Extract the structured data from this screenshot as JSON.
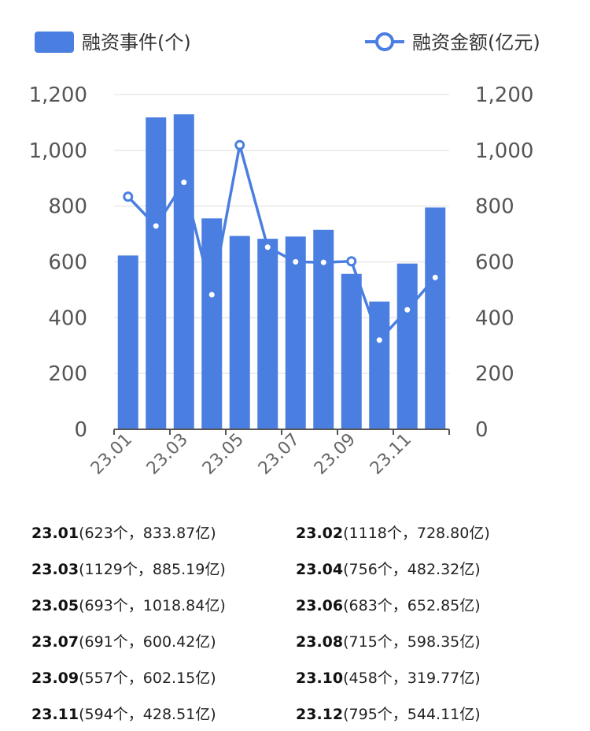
{
  "legend": {
    "bar_label": "融资事件(个)",
    "line_label": "融资金额(亿元)"
  },
  "colors": {
    "bar": "#4a7ee0",
    "line": "#4a7ee0",
    "grid": "#e8e8e8",
    "axis": "#555555"
  },
  "chart_data": {
    "type": "bar+line",
    "categories": [
      "23.01",
      "23.02",
      "23.03",
      "23.04",
      "23.05",
      "23.06",
      "23.07",
      "23.08",
      "23.09",
      "23.10",
      "23.11",
      "23.12"
    ],
    "x_tick_labels": [
      "23.01",
      "23.03",
      "23.05",
      "23.07",
      "23.09",
      "23.11"
    ],
    "series": [
      {
        "name": "融资事件(个)",
        "type": "bar",
        "axis": "left",
        "values": [
          623,
          1118,
          1129,
          756,
          693,
          683,
          691,
          715,
          557,
          458,
          594,
          795
        ]
      },
      {
        "name": "融资金额(亿元)",
        "type": "line",
        "axis": "right",
        "values": [
          833.87,
          728.8,
          885.19,
          482.32,
          1018.84,
          652.85,
          600.42,
          598.35,
          602.15,
          319.77,
          428.51,
          544.11
        ]
      }
    ],
    "y_left": {
      "ylim": [
        0,
        1200
      ],
      "ticks": [
        "0",
        "200",
        "400",
        "600",
        "800",
        "1,000",
        "1,200"
      ]
    },
    "y_right": {
      "ylim": [
        0,
        1200
      ],
      "ticks": [
        "0",
        "200",
        "400",
        "600",
        "800",
        "1,000",
        "1,200"
      ]
    },
    "grid": true,
    "legend_position": "top"
  },
  "table": [
    {
      "date": "23.01",
      "detail": "(623个，833.87亿)"
    },
    {
      "date": "23.02",
      "detail": "(1118个，728.80亿)"
    },
    {
      "date": "23.03",
      "detail": "(1129个，885.19亿)"
    },
    {
      "date": "23.04",
      "detail": "(756个，482.32亿)"
    },
    {
      "date": "23.05",
      "detail": "(693个，1018.84亿)"
    },
    {
      "date": "23.06",
      "detail": "(683个，652.85亿)"
    },
    {
      "date": "23.07",
      "detail": "(691个，600.42亿)"
    },
    {
      "date": "23.08",
      "detail": "(715个，598.35亿)"
    },
    {
      "date": "23.09",
      "detail": "(557个，602.15亿)"
    },
    {
      "date": "23.10",
      "detail": "(458个，319.77亿)"
    },
    {
      "date": "23.11",
      "detail": "(594个，428.51亿)"
    },
    {
      "date": "23.12",
      "detail": "(795个，544.11亿)"
    }
  ]
}
